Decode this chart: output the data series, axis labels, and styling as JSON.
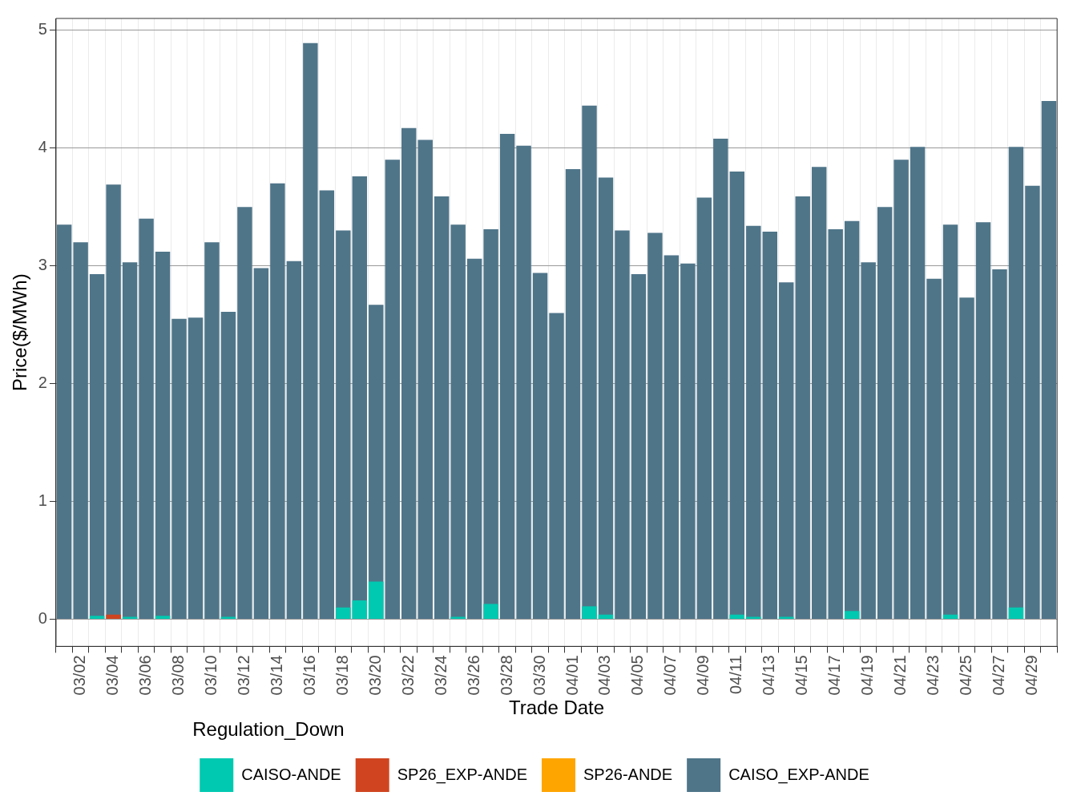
{
  "chart_data": {
    "type": "bar",
    "xlabel": "Trade Date",
    "ylabel": "Price($/MWh)",
    "legend_title": "Regulation_Down",
    "legend": "bottom",
    "grid": true,
    "categories": [
      null,
      "03/02",
      null,
      "03/04",
      null,
      "03/06",
      null,
      "03/08",
      null,
      "03/10",
      null,
      "03/12",
      null,
      "03/14",
      null,
      "03/16",
      null,
      "03/18",
      null,
      "03/20",
      null,
      "03/22",
      null,
      "03/24",
      null,
      "03/26",
      null,
      "03/28",
      null,
      "03/30",
      null,
      "04/01",
      null,
      "04/03",
      null,
      "04/05",
      null,
      "04/07",
      null,
      "04/09",
      null,
      "04/11",
      null,
      "04/13",
      null,
      "04/15",
      null,
      "04/17",
      null,
      "04/19",
      null,
      "04/21",
      null,
      "04/23",
      null,
      "04/25",
      null,
      "04/27",
      null,
      "04/29",
      null
    ],
    "ylim": [
      -0.23,
      5.1
    ],
    "yticks": [
      0,
      1,
      2,
      3,
      4,
      5
    ],
    "series": [
      {
        "name": "CAISO_EXP-ANDE",
        "color": "#4f7589",
        "values": [
          3.35,
          3.2,
          2.93,
          3.69,
          3.03,
          3.4,
          3.12,
          2.55,
          2.56,
          3.2,
          2.61,
          3.5,
          2.98,
          3.7,
          3.04,
          4.89,
          3.64,
          3.3,
          3.76,
          2.67,
          3.9,
          4.17,
          4.07,
          3.59,
          3.35,
          3.06,
          3.31,
          4.12,
          4.02,
          2.94,
          2.6,
          3.82,
          4.36,
          3.75,
          3.3,
          2.93,
          3.28,
          3.09,
          3.02,
          3.58,
          4.08,
          3.8,
          3.34,
          3.29,
          2.86,
          3.59,
          3.84,
          3.31,
          3.38,
          3.03,
          3.5,
          3.9,
          4.01,
          2.89,
          3.35,
          2.73,
          3.37,
          2.97,
          4.01,
          3.68,
          4.4
        ]
      },
      {
        "name": "CAISO-ANDE",
        "color": "#00c9b1",
        "values": [
          null,
          null,
          0.03,
          null,
          0.02,
          null,
          0.03,
          null,
          null,
          null,
          0.02,
          null,
          null,
          null,
          null,
          null,
          null,
          0.1,
          0.16,
          0.32,
          null,
          null,
          null,
          null,
          0.02,
          null,
          0.13,
          null,
          null,
          null,
          null,
          null,
          0.11,
          0.04,
          null,
          null,
          null,
          null,
          null,
          null,
          null,
          0.04,
          0.02,
          null,
          0.02,
          null,
          null,
          null,
          0.07,
          null,
          null,
          null,
          null,
          null,
          0.04,
          null,
          null,
          null,
          0.1,
          null,
          null
        ]
      },
      {
        "name": "SP26_EXP-ANDE",
        "color": "#d04520",
        "values": [
          null,
          null,
          null,
          0.04,
          null,
          null,
          null,
          null,
          null,
          null,
          null,
          null,
          null,
          null,
          null,
          null,
          null,
          null,
          null,
          null,
          null,
          null,
          null,
          null,
          null,
          null,
          null,
          null,
          null,
          null,
          null,
          null,
          null,
          null,
          null,
          null,
          null,
          null,
          null,
          null,
          null,
          null,
          null,
          null,
          null,
          null,
          null,
          null,
          null,
          null,
          null,
          null,
          null,
          null,
          null,
          null,
          null,
          null,
          null,
          null,
          null
        ]
      },
      {
        "name": "SP26-ANDE",
        "color": "#ffa500",
        "values": [
          null,
          null,
          null,
          null,
          null,
          null,
          null,
          null,
          null,
          null,
          null,
          null,
          null,
          null,
          null,
          null,
          null,
          null,
          null,
          null,
          null,
          null,
          null,
          null,
          null,
          null,
          null,
          null,
          null,
          null,
          null,
          null,
          null,
          null,
          null,
          null,
          null,
          null,
          null,
          null,
          null,
          null,
          null,
          null,
          null,
          null,
          null,
          null,
          null,
          null,
          null,
          null,
          null,
          null,
          null,
          null,
          null,
          null,
          null,
          null,
          null
        ]
      }
    ]
  }
}
